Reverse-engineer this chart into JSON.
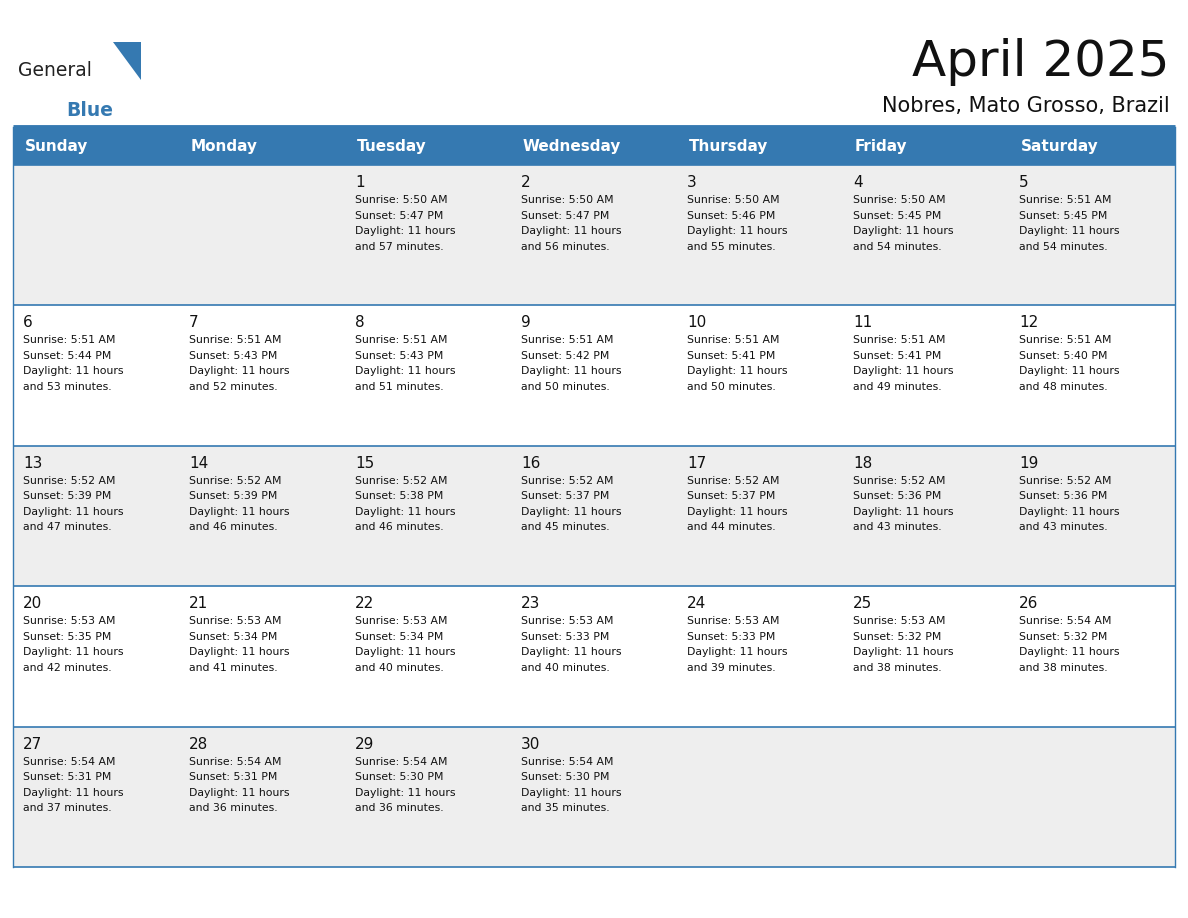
{
  "title": "April 2025",
  "subtitle": "Nobres, Mato Grosso, Brazil",
  "header_bg": "#3579b1",
  "header_text_color": "#ffffff",
  "row_bg_odd": "#eeeeee",
  "row_bg_even": "#ffffff",
  "separator_color": "#3579b1",
  "day_names": [
    "Sunday",
    "Monday",
    "Tuesday",
    "Wednesday",
    "Thursday",
    "Friday",
    "Saturday"
  ],
  "days": [
    {
      "date": 1,
      "col": 2,
      "row": 0,
      "sunrise": "5:50 AM",
      "sunset": "5:47 PM",
      "daylight": "11 hours and 57 minutes."
    },
    {
      "date": 2,
      "col": 3,
      "row": 0,
      "sunrise": "5:50 AM",
      "sunset": "5:47 PM",
      "daylight": "11 hours and 56 minutes."
    },
    {
      "date": 3,
      "col": 4,
      "row": 0,
      "sunrise": "5:50 AM",
      "sunset": "5:46 PM",
      "daylight": "11 hours and 55 minutes."
    },
    {
      "date": 4,
      "col": 5,
      "row": 0,
      "sunrise": "5:50 AM",
      "sunset": "5:45 PM",
      "daylight": "11 hours and 54 minutes."
    },
    {
      "date": 5,
      "col": 6,
      "row": 0,
      "sunrise": "5:51 AM",
      "sunset": "5:45 PM",
      "daylight": "11 hours and 54 minutes."
    },
    {
      "date": 6,
      "col": 0,
      "row": 1,
      "sunrise": "5:51 AM",
      "sunset": "5:44 PM",
      "daylight": "11 hours and 53 minutes."
    },
    {
      "date": 7,
      "col": 1,
      "row": 1,
      "sunrise": "5:51 AM",
      "sunset": "5:43 PM",
      "daylight": "11 hours and 52 minutes."
    },
    {
      "date": 8,
      "col": 2,
      "row": 1,
      "sunrise": "5:51 AM",
      "sunset": "5:43 PM",
      "daylight": "11 hours and 51 minutes."
    },
    {
      "date": 9,
      "col": 3,
      "row": 1,
      "sunrise": "5:51 AM",
      "sunset": "5:42 PM",
      "daylight": "11 hours and 50 minutes."
    },
    {
      "date": 10,
      "col": 4,
      "row": 1,
      "sunrise": "5:51 AM",
      "sunset": "5:41 PM",
      "daylight": "11 hours and 50 minutes."
    },
    {
      "date": 11,
      "col": 5,
      "row": 1,
      "sunrise": "5:51 AM",
      "sunset": "5:41 PM",
      "daylight": "11 hours and 49 minutes."
    },
    {
      "date": 12,
      "col": 6,
      "row": 1,
      "sunrise": "5:51 AM",
      "sunset": "5:40 PM",
      "daylight": "11 hours and 48 minutes."
    },
    {
      "date": 13,
      "col": 0,
      "row": 2,
      "sunrise": "5:52 AM",
      "sunset": "5:39 PM",
      "daylight": "11 hours and 47 minutes."
    },
    {
      "date": 14,
      "col": 1,
      "row": 2,
      "sunrise": "5:52 AM",
      "sunset": "5:39 PM",
      "daylight": "11 hours and 46 minutes."
    },
    {
      "date": 15,
      "col": 2,
      "row": 2,
      "sunrise": "5:52 AM",
      "sunset": "5:38 PM",
      "daylight": "11 hours and 46 minutes."
    },
    {
      "date": 16,
      "col": 3,
      "row": 2,
      "sunrise": "5:52 AM",
      "sunset": "5:37 PM",
      "daylight": "11 hours and 45 minutes."
    },
    {
      "date": 17,
      "col": 4,
      "row": 2,
      "sunrise": "5:52 AM",
      "sunset": "5:37 PM",
      "daylight": "11 hours and 44 minutes."
    },
    {
      "date": 18,
      "col": 5,
      "row": 2,
      "sunrise": "5:52 AM",
      "sunset": "5:36 PM",
      "daylight": "11 hours and 43 minutes."
    },
    {
      "date": 19,
      "col": 6,
      "row": 2,
      "sunrise": "5:52 AM",
      "sunset": "5:36 PM",
      "daylight": "11 hours and 43 minutes."
    },
    {
      "date": 20,
      "col": 0,
      "row": 3,
      "sunrise": "5:53 AM",
      "sunset": "5:35 PM",
      "daylight": "11 hours and 42 minutes."
    },
    {
      "date": 21,
      "col": 1,
      "row": 3,
      "sunrise": "5:53 AM",
      "sunset": "5:34 PM",
      "daylight": "11 hours and 41 minutes."
    },
    {
      "date": 22,
      "col": 2,
      "row": 3,
      "sunrise": "5:53 AM",
      "sunset": "5:34 PM",
      "daylight": "11 hours and 40 minutes."
    },
    {
      "date": 23,
      "col": 3,
      "row": 3,
      "sunrise": "5:53 AM",
      "sunset": "5:33 PM",
      "daylight": "11 hours and 40 minutes."
    },
    {
      "date": 24,
      "col": 4,
      "row": 3,
      "sunrise": "5:53 AM",
      "sunset": "5:33 PM",
      "daylight": "11 hours and 39 minutes."
    },
    {
      "date": 25,
      "col": 5,
      "row": 3,
      "sunrise": "5:53 AM",
      "sunset": "5:32 PM",
      "daylight": "11 hours and 38 minutes."
    },
    {
      "date": 26,
      "col": 6,
      "row": 3,
      "sunrise": "5:54 AM",
      "sunset": "5:32 PM",
      "daylight": "11 hours and 38 minutes."
    },
    {
      "date": 27,
      "col": 0,
      "row": 4,
      "sunrise": "5:54 AM",
      "sunset": "5:31 PM",
      "daylight": "11 hours and 37 minutes."
    },
    {
      "date": 28,
      "col": 1,
      "row": 4,
      "sunrise": "5:54 AM",
      "sunset": "5:31 PM",
      "daylight": "11 hours and 36 minutes."
    },
    {
      "date": 29,
      "col": 2,
      "row": 4,
      "sunrise": "5:54 AM",
      "sunset": "5:30 PM",
      "daylight": "11 hours and 36 minutes."
    },
    {
      "date": 30,
      "col": 3,
      "row": 4,
      "sunrise": "5:54 AM",
      "sunset": "5:30 PM",
      "daylight": "11 hours and 35 minutes."
    }
  ],
  "num_rows": 5,
  "num_cols": 7
}
